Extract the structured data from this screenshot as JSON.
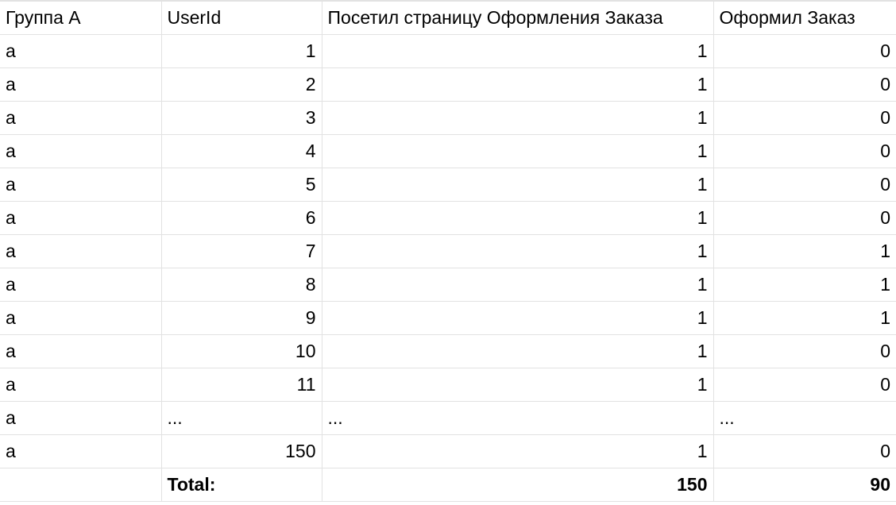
{
  "headers": [
    "Группа A",
    "UserId",
    "Посетил страницу Оформления Заказа",
    "Оформил Заказ"
  ],
  "rows": [
    {
      "group": "a",
      "user_id": "1",
      "visited": "1",
      "ordered": "0"
    },
    {
      "group": "a",
      "user_id": "2",
      "visited": "1",
      "ordered": "0"
    },
    {
      "group": "a",
      "user_id": "3",
      "visited": "1",
      "ordered": "0"
    },
    {
      "group": "a",
      "user_id": "4",
      "visited": "1",
      "ordered": "0"
    },
    {
      "group": "a",
      "user_id": "5",
      "visited": "1",
      "ordered": "0"
    },
    {
      "group": "a",
      "user_id": "6",
      "visited": "1",
      "ordered": "0"
    },
    {
      "group": "a",
      "user_id": "7",
      "visited": "1",
      "ordered": "1"
    },
    {
      "group": "a",
      "user_id": "8",
      "visited": "1",
      "ordered": "1"
    },
    {
      "group": "a",
      "user_id": "9",
      "visited": "1",
      "ordered": "1"
    },
    {
      "group": "a",
      "user_id": "10",
      "visited": "1",
      "ordered": "0"
    },
    {
      "group": "a",
      "user_id": "11",
      "visited": "1",
      "ordered": "0"
    }
  ],
  "ellipsis_row": {
    "group": "a",
    "user_id": "...",
    "visited": "...",
    "ordered": "..."
  },
  "last_row": {
    "group": "a",
    "user_id": "150",
    "visited": "1",
    "ordered": "0"
  },
  "total_row": {
    "label": "Total:",
    "visited_total": "150",
    "ordered_total": "90"
  }
}
